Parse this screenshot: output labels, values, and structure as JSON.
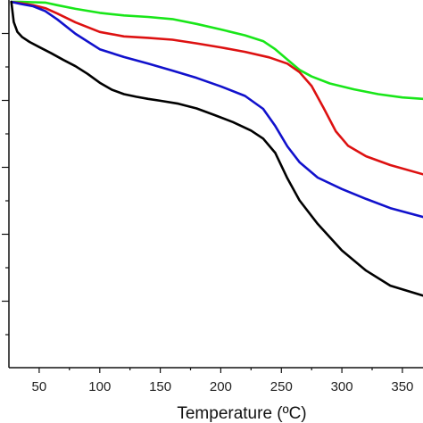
{
  "chart_data": {
    "type": "line",
    "title": "",
    "xlabel": "Temperature (ºC)",
    "ylabel": "",
    "xlim": [
      25,
      367
    ],
    "ylim": [
      0,
      100
    ],
    "x_ticks": [
      50,
      100,
      150,
      200,
      250,
      300,
      350
    ],
    "x_tick_labels": [
      "50",
      "100",
      "150",
      "200",
      "250",
      "300",
      "350"
    ],
    "y_tick_count": 10,
    "y_tick_labels_visible": false,
    "grid": false,
    "legend": "none",
    "series": [
      {
        "color": "#19e619",
        "x": [
          27,
          35,
          45,
          55,
          65,
          80,
          100,
          120,
          140,
          160,
          180,
          200,
          220,
          235,
          245,
          255,
          265,
          275,
          290,
          310,
          330,
          350,
          367
        ],
        "y": [
          99.5,
          99.5,
          99.4,
          99.3,
          98.6,
          97.6,
          96.5,
          95.8,
          95.4,
          94.8,
          93.5,
          92.0,
          90.4,
          88.8,
          86.6,
          83.8,
          81.0,
          79.2,
          77.3,
          75.7,
          74.4,
          73.5,
          73.1
        ]
      },
      {
        "color": "#dd1111",
        "x": [
          27,
          35,
          45,
          55,
          65,
          80,
          100,
          120,
          140,
          160,
          180,
          200,
          220,
          240,
          255,
          265,
          275,
          285,
          295,
          305,
          320,
          340,
          367
        ],
        "y": [
          99.5,
          99.1,
          98.6,
          97.8,
          96.3,
          93.9,
          91.3,
          90.1,
          89.7,
          89.2,
          88.2,
          87.1,
          85.9,
          84.4,
          82.7,
          80.4,
          76.6,
          70.6,
          64.3,
          60.4,
          57.5,
          55.1,
          52.6
        ]
      },
      {
        "color": "#1111cc",
        "x": [
          27,
          35,
          45,
          55,
          65,
          80,
          100,
          120,
          140,
          160,
          180,
          200,
          220,
          235,
          245,
          255,
          265,
          280,
          300,
          320,
          340,
          367
        ],
        "y": [
          99.5,
          98.9,
          98.3,
          97.0,
          94.7,
          90.8,
          86.6,
          84.5,
          82.7,
          80.8,
          78.8,
          76.5,
          73.9,
          70.4,
          65.7,
          60.2,
          55.9,
          51.7,
          48.6,
          45.9,
          43.4,
          41.0
        ]
      },
      {
        "color": "#000000",
        "x": [
          27,
          29,
          32,
          36,
          42,
          50,
          60,
          70,
          80,
          90,
          100,
          110,
          120,
          130,
          140,
          150,
          165,
          180,
          195,
          210,
          225,
          235,
          245,
          255,
          265,
          280,
          300,
          320,
          340,
          367
        ],
        "y": [
          99.5,
          94.0,
          91.3,
          89.9,
          88.6,
          87.2,
          85.5,
          83.7,
          82.0,
          79.9,
          77.5,
          75.6,
          74.4,
          73.7,
          73.1,
          72.6,
          71.8,
          70.5,
          68.7,
          66.8,
          64.5,
          62.3,
          58.4,
          51.5,
          45.5,
          39.1,
          31.9,
          26.4,
          22.3,
          19.6
        ]
      }
    ]
  }
}
